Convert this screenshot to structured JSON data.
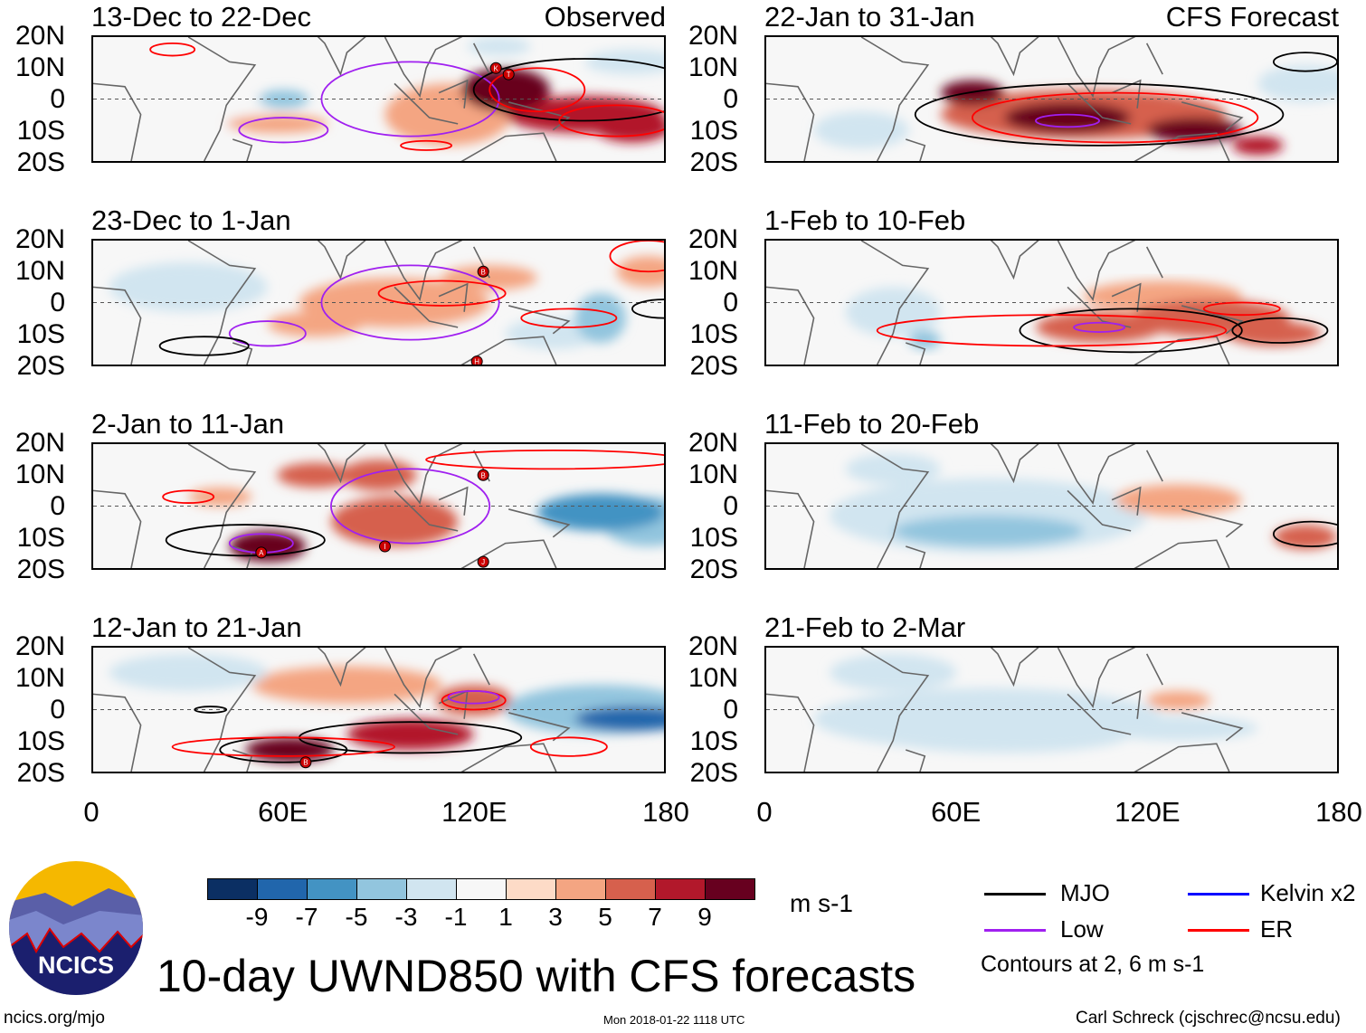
{
  "title": "10-day UWND850 with CFS forecasts",
  "logo_text": "NCICS",
  "footer": {
    "left": "ncics.org/mjo",
    "center": "Mon 2018-01-22 1118 UTC",
    "right": "Carl Schreck (cjschrec@ncsu.edu)"
  },
  "column_tags": {
    "observed": "Observed",
    "forecast": "CFS Forecast"
  },
  "lat_labels": [
    "20N",
    "10N",
    "0",
    "10S",
    "20S"
  ],
  "lon_labels": [
    "0",
    "60E",
    "120E",
    "180"
  ],
  "colorbar": {
    "units": "m s-1",
    "labels": [
      "-9",
      "-7",
      "-5",
      "-3",
      "-1",
      "1",
      "3",
      "5",
      "7",
      "9"
    ],
    "colors": [
      "#0b2f63",
      "#2166ac",
      "#4393c3",
      "#92c5de",
      "#d1e5f0",
      "#f7f7f7",
      "#fddbc7",
      "#f4a582",
      "#d6604d",
      "#b2182b",
      "#67001f"
    ]
  },
  "legend": {
    "items": [
      {
        "label": "MJO",
        "color": "#000000"
      },
      {
        "label": "Kelvin x2",
        "color": "#0000ff"
      },
      {
        "label": "Low",
        "color": "#a020f0"
      },
      {
        "label": "ER",
        "color": "#ff0000"
      }
    ],
    "note": "Contours at 2, 6 m s-1"
  },
  "chart_data": {
    "type": "heatmap",
    "variable": "850-hPa zonal wind anomaly",
    "units": "m s-1",
    "lon_range": [
      0,
      180
    ],
    "lat_range": [
      -20,
      20
    ],
    "panels": [
      {
        "title": "13-Dec to 22-Dec",
        "column": "observed",
        "anomalies": [
          [
            130,
            3,
            9,
            14,
            7
          ],
          [
            155,
            -5,
            7,
            25,
            6
          ],
          [
            170,
            -9,
            7,
            12,
            5
          ],
          [
            112,
            -5,
            3,
            20,
            10
          ],
          [
            60,
            0,
            -5,
            8,
            3
          ],
          [
            58,
            -8,
            3,
            16,
            3
          ],
          [
            128,
            17,
            -3,
            10,
            3
          ],
          [
            170,
            12,
            -3,
            15,
            4
          ],
          [
            30,
            -3,
            -1,
            25,
            12
          ]
        ],
        "contours": [
          [
            "Low",
            60,
            -10,
            14,
            4
          ],
          [
            "Low",
            100,
            0,
            28,
            12
          ],
          [
            "MJO",
            155,
            3,
            35,
            10
          ],
          [
            "ER",
            140,
            3,
            15,
            7
          ],
          [
            "ER",
            165,
            -7,
            18,
            5
          ],
          [
            "ER",
            105,
            -15,
            8,
            1.5
          ],
          [
            "ER",
            25,
            16,
            7,
            2
          ]
        ],
        "storms": [
          [
            "K",
            127,
            10
          ],
          [
            "T",
            131,
            8
          ]
        ]
      },
      {
        "title": "23-Dec to 1-Jan",
        "column": "observed",
        "anomalies": [
          [
            70,
            -7,
            3,
            15,
            4
          ],
          [
            95,
            0,
            3,
            30,
            8
          ],
          [
            160,
            -5,
            -5,
            8,
            8
          ],
          [
            145,
            -10,
            -3,
            15,
            5
          ],
          [
            125,
            8,
            3,
            15,
            4
          ],
          [
            30,
            5,
            -3,
            25,
            8
          ],
          [
            175,
            10,
            3,
            10,
            5
          ]
        ],
        "contours": [
          [
            "Low",
            55,
            -10,
            12,
            4
          ],
          [
            "Low",
            100,
            0,
            28,
            12
          ],
          [
            "MJO",
            35,
            -14,
            14,
            3
          ],
          [
            "MJO",
            180,
            -2,
            10,
            3
          ],
          [
            "ER",
            110,
            3,
            20,
            4
          ],
          [
            "ER",
            150,
            -5,
            15,
            3
          ],
          [
            "ER",
            175,
            15,
            12,
            5
          ]
        ],
        "storms": [
          [
            "B",
            123,
            10
          ],
          [
            "H",
            121,
            -19
          ]
        ]
      },
      {
        "title": "2-Jan to 11-Jan",
        "column": "observed",
        "anomalies": [
          [
            55,
            -13,
            9,
            12,
            5
          ],
          [
            70,
            10,
            5,
            12,
            4
          ],
          [
            90,
            10,
            5,
            12,
            5
          ],
          [
            95,
            -5,
            5,
            20,
            8
          ],
          [
            160,
            -2,
            -7,
            20,
            6
          ],
          [
            175,
            -5,
            -5,
            15,
            8
          ],
          [
            40,
            3,
            3,
            10,
            3
          ]
        ],
        "contours": [
          [
            "MJO",
            48,
            -11,
            25,
            5
          ],
          [
            "Low",
            53,
            -12,
            10,
            3
          ],
          [
            "Low",
            100,
            0,
            25,
            12
          ],
          [
            "ER",
            30,
            3,
            8,
            2
          ],
          [
            "ER",
            145,
            15,
            40,
            3
          ]
        ],
        "storms": [
          [
            "A",
            53,
            -15
          ],
          [
            "I",
            92,
            -13
          ],
          [
            "B",
            123,
            10
          ],
          [
            "J",
            123,
            -18
          ]
        ]
      },
      {
        "title": "12-Jan to 21-Jan",
        "column": "observed",
        "anomalies": [
          [
            62,
            -13,
            9,
            14,
            4
          ],
          [
            100,
            -8,
            7,
            20,
            5
          ],
          [
            120,
            3,
            5,
            12,
            5
          ],
          [
            170,
            -3,
            -9,
            18,
            4
          ],
          [
            160,
            0,
            -5,
            30,
            8
          ],
          [
            80,
            8,
            3,
            30,
            6
          ],
          [
            30,
            12,
            -3,
            25,
            6
          ]
        ],
        "contours": [
          [
            "MJO",
            100,
            -9,
            35,
            5
          ],
          [
            "MJO",
            60,
            -13,
            20,
            4
          ],
          [
            "MJO",
            37,
            0,
            5,
            1
          ],
          [
            "ER",
            120,
            3,
            10,
            3
          ],
          [
            "ER",
            60,
            -12,
            35,
            3
          ],
          [
            "ER",
            150,
            -12,
            12,
            3
          ],
          [
            "Low",
            120,
            4,
            8,
            2
          ]
        ],
        "storms": [
          [
            "B",
            67,
            -17
          ]
        ]
      },
      {
        "title": "22-Jan to 31-Jan",
        "column": "forecast",
        "anomalies": [
          [
            65,
            2,
            9,
            10,
            4
          ],
          [
            95,
            -6,
            9,
            20,
            5
          ],
          [
            135,
            -10,
            9,
            15,
            4
          ],
          [
            155,
            -15,
            7,
            8,
            3
          ],
          [
            100,
            -5,
            5,
            45,
            8
          ],
          [
            30,
            -10,
            -3,
            15,
            6
          ],
          [
            170,
            5,
            -3,
            15,
            6
          ]
        ],
        "contours": [
          [
            "MJO",
            105,
            -5,
            58,
            10
          ],
          [
            "ER",
            110,
            -6,
            45,
            8
          ],
          [
            "Low",
            95,
            -7,
            10,
            2
          ],
          [
            "MJO",
            170,
            12,
            10,
            3
          ]
        ],
        "storms": []
      },
      {
        "title": "1-Feb to 10-Feb",
        "column": "forecast",
        "anomalies": [
          [
            105,
            -8,
            5,
            20,
            5
          ],
          [
            140,
            -5,
            5,
            25,
            6
          ],
          [
            160,
            -10,
            5,
            15,
            4
          ],
          [
            40,
            -3,
            -3,
            15,
            8
          ],
          [
            50,
            -12,
            -5,
            5,
            3
          ],
          [
            125,
            2,
            3,
            25,
            5
          ]
        ],
        "contours": [
          [
            "MJO",
            115,
            -9,
            35,
            7
          ],
          [
            "MJO",
            162,
            -9,
            15,
            4
          ],
          [
            "ER",
            90,
            -9,
            55,
            5
          ],
          [
            "ER",
            150,
            -2,
            12,
            2
          ],
          [
            "Low",
            105,
            -8,
            8,
            1.5
          ]
        ],
        "storms": []
      },
      {
        "title": "11-Feb to 20-Feb",
        "column": "forecast",
        "anomalies": [
          [
            70,
            -8,
            -5,
            30,
            5
          ],
          [
            70,
            -3,
            -3,
            50,
            12
          ],
          [
            130,
            2,
            3,
            20,
            5
          ],
          [
            170,
            -10,
            5,
            10,
            4
          ],
          [
            40,
            12,
            -3,
            15,
            5
          ]
        ],
        "contours": [
          [
            "MJO",
            172,
            -9,
            12,
            4
          ]
        ],
        "storms": []
      },
      {
        "title": "21-Feb to 2-Mar",
        "column": "forecast",
        "anomalies": [
          [
            75,
            -8,
            -3,
            40,
            6
          ],
          [
            70,
            -3,
            -3,
            55,
            10
          ],
          [
            130,
            -6,
            -3,
            25,
            4
          ],
          [
            130,
            3,
            3,
            10,
            3
          ],
          [
            40,
            12,
            -3,
            20,
            6
          ]
        ],
        "contours": [],
        "storms": []
      }
    ]
  }
}
